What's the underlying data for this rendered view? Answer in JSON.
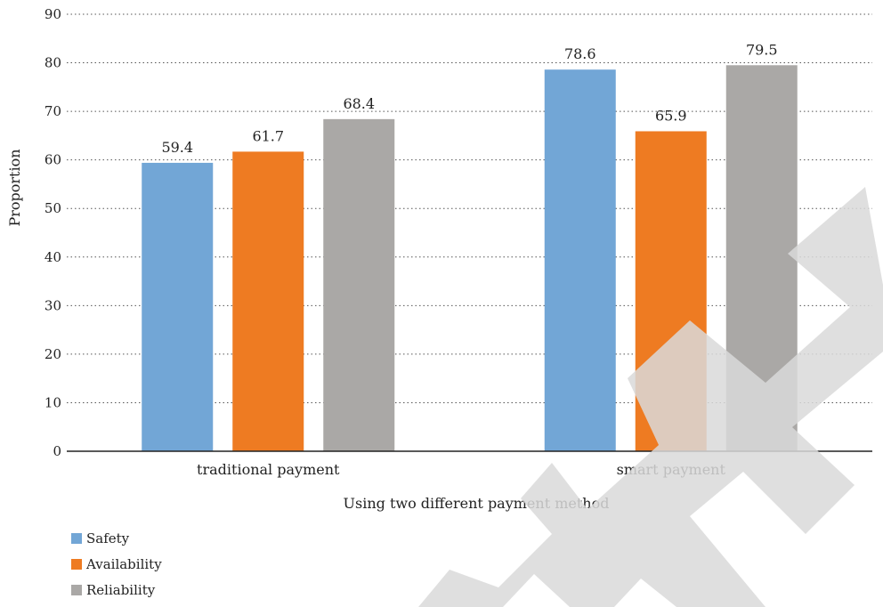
{
  "chart_data": {
    "type": "bar",
    "categories": [
      "traditional payment",
      "smart payment"
    ],
    "series": [
      {
        "name": "Safety",
        "color": "#72a6d6",
        "values": [
          59.4,
          78.6
        ]
      },
      {
        "name": "Availability",
        "color": "#ee7b22",
        "values": [
          61.7,
          65.9
        ]
      },
      {
        "name": "Reliability",
        "color": "#aaa8a6",
        "values": [
          68.4,
          79.5
        ]
      }
    ],
    "title": "",
    "xlabel": "Using two different payment method",
    "ylabel": "Proportion",
    "ylim": [
      0,
      90
    ],
    "yticks": [
      0,
      10,
      20,
      30,
      40,
      50,
      60,
      70,
      80,
      90
    ],
    "grid": true,
    "legend": "bottom-left",
    "watermark_color": "#d9d9d9"
  }
}
